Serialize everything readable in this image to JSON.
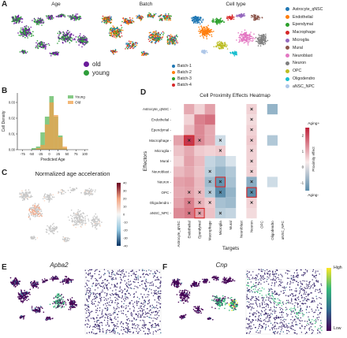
{
  "panels": {
    "a_letter": "A",
    "b_letter": "B",
    "c_letter": "C",
    "d_letter": "D",
    "e_letter": "E",
    "f_letter": "F"
  },
  "umap_titles": {
    "age": "Age",
    "batch": "Batch",
    "cell_type": "Cell type"
  },
  "age_legend": [
    {
      "label": "old",
      "color": "#6a1b9a"
    },
    {
      "label": "young",
      "color": "#2e9d3a"
    }
  ],
  "batch_legend": [
    {
      "label": "Batch-1",
      "color": "#1f77b4"
    },
    {
      "label": "Batch-2",
      "color": "#ff7f0e"
    },
    {
      "label": "Batch-3",
      "color": "#2ca02c"
    },
    {
      "label": "Batch-4",
      "color": "#d62728"
    }
  ],
  "celltype_legend": [
    {
      "label": "Astrocyte_qNSC",
      "color": "#1f77b4"
    },
    {
      "label": "Endothelial",
      "color": "#ff7f0e"
    },
    {
      "label": "Ependymal",
      "color": "#2ca02c"
    },
    {
      "label": "Macrophage",
      "color": "#d62728"
    },
    {
      "label": "Microglia",
      "color": "#9467bd"
    },
    {
      "label": "Mural",
      "color": "#8c564b"
    },
    {
      "label": "Neuroblast",
      "color": "#e377c2"
    },
    {
      "label": "Neuron",
      "color": "#7f7f7f"
    },
    {
      "label": "OPC",
      "color": "#bcbd22"
    },
    {
      "label": "Oligodendro",
      "color": "#17becf"
    },
    {
      "label": "aNSC_NPC",
      "color": "#aec7e8"
    }
  ],
  "c_title": "Normalized age acceleration",
  "c_colorbar_ticks": [
    "40",
    "30",
    "20",
    "10",
    "0",
    "-10",
    "-20",
    "-30",
    "-40"
  ],
  "genes": {
    "e": "Apba2",
    "f": "Cnp"
  },
  "expr_colorbar": {
    "high": "High",
    "low": "Low"
  },
  "chart_data": [
    {
      "id": "B",
      "type": "bar",
      "subtype": "histogram",
      "xlabel": "Predicted Age",
      "ylabel": "Cell Density",
      "xlim": [
        -90,
        110
      ],
      "ylim": [
        0,
        0.036
      ],
      "xticks": [
        -75,
        -50,
        -25,
        0,
        25,
        50,
        75,
        100
      ],
      "yticks": [
        0.0,
        0.01,
        0.02,
        0.03
      ],
      "bin_edges": [
        -50,
        -37.5,
        -25,
        -12.5,
        0,
        12.5,
        25,
        37.5,
        50
      ],
      "series": [
        {
          "name": "Young",
          "color": "#5cb85c",
          "values": [
            0.001,
            0.002,
            0.011,
            0.021,
            0.034,
            0.021,
            0.009,
            0.001
          ]
        },
        {
          "name": "Old",
          "color": "#f0a04b",
          "values": [
            0.0,
            0.001,
            0.003,
            0.016,
            0.03,
            0.022,
            0.008,
            0.002
          ]
        }
      ],
      "legend_position": "top-right"
    },
    {
      "id": "D",
      "type": "heatmap",
      "title": "Cell Proximity Effects Heatmap",
      "ylabel": "Effectors",
      "xlabel": "Targets",
      "rows": [
        "Astrocyte_qNSC",
        "Endothelial",
        "Ependymal",
        "Macrophage",
        "Microglia",
        "Mural",
        "Neuroblast",
        "Neuron",
        "OPC",
        "Oligodendro",
        "aNSC_NPC"
      ],
      "columns": [
        "Astrocyte_qNSC",
        "Endothelial",
        "Ependymal",
        "Macrophage",
        "Microglia",
        "Mural",
        "Neuroblast",
        "Neuron",
        "OPC",
        "Oligodendro",
        "aNSC_NPC"
      ],
      "values": [
        [
          null,
          0.8,
          0.3,
          0.9,
          null,
          null,
          null,
          0.3,
          null,
          -0.9,
          null
        ],
        [
          null,
          0.3,
          1.3,
          1.5,
          null,
          null,
          null,
          0.2,
          null,
          null,
          null
        ],
        [
          null,
          0.6,
          1.2,
          0.8,
          null,
          null,
          null,
          0.3,
          null,
          null,
          null
        ],
        [
          0.9,
          2.2,
          1.2,
          0.8,
          -0.3,
          null,
          null,
          0.4,
          null,
          -0.6,
          null
        ],
        [
          0.5,
          0.8,
          0.4,
          0.3,
          0.4,
          null,
          null,
          0.3,
          null,
          null,
          null
        ],
        [
          0.3,
          0.9,
          0.6,
          -0.4,
          -0.6,
          -0.2,
          null,
          0.3,
          null,
          null,
          null
        ],
        [
          0.6,
          0.8,
          0.5,
          -0.5,
          -0.9,
          -0.6,
          null,
          0.3,
          null,
          null,
          null
        ],
        [
          0.9,
          1.0,
          0.6,
          -0.8,
          -1.4,
          -0.7,
          null,
          -1.0,
          null,
          -0.3,
          null
        ],
        [
          0.8,
          0.9,
          0.6,
          -0.6,
          -1.8,
          -0.9,
          null,
          -2.1,
          null,
          null,
          null
        ],
        [
          0.9,
          1.3,
          0.7,
          0.4,
          -0.7,
          -0.8,
          null,
          0.3,
          null,
          null,
          null
        ],
        [
          1.2,
          1.4,
          0.9,
          0.5,
          -0.5,
          -0.4,
          null,
          0.2,
          null,
          null,
          null
        ]
      ],
      "significant": [
        [
          0,
          7
        ],
        [
          1,
          7
        ],
        [
          2,
          7
        ],
        [
          3,
          1
        ],
        [
          3,
          2
        ],
        [
          3,
          4
        ],
        [
          3,
          7
        ],
        [
          4,
          4
        ],
        [
          4,
          7
        ],
        [
          5,
          7
        ],
        [
          6,
          3
        ],
        [
          6,
          7
        ],
        [
          7,
          3
        ],
        [
          7,
          4
        ],
        [
          7,
          7
        ],
        [
          8,
          1
        ],
        [
          8,
          2
        ],
        [
          8,
          3
        ],
        [
          8,
          4
        ],
        [
          8,
          7
        ],
        [
          9,
          1
        ],
        [
          9,
          2
        ],
        [
          9,
          3
        ],
        [
          9,
          7
        ],
        [
          10,
          1
        ],
        [
          10,
          2
        ],
        [
          10,
          4
        ]
      ],
      "boxed": [
        [
          7,
          4
        ],
        [
          8,
          7
        ],
        [
          10,
          2
        ],
        [
          3,
          1
        ]
      ],
      "colorbar": {
        "label": "Proximity effect",
        "ticks": [
          "2",
          "1",
          "0",
          "-1"
        ],
        "range": [
          -1.5,
          2.5
        ],
        "top_label": "Aging+",
        "bottom_label": "Aging-"
      }
    }
  ]
}
